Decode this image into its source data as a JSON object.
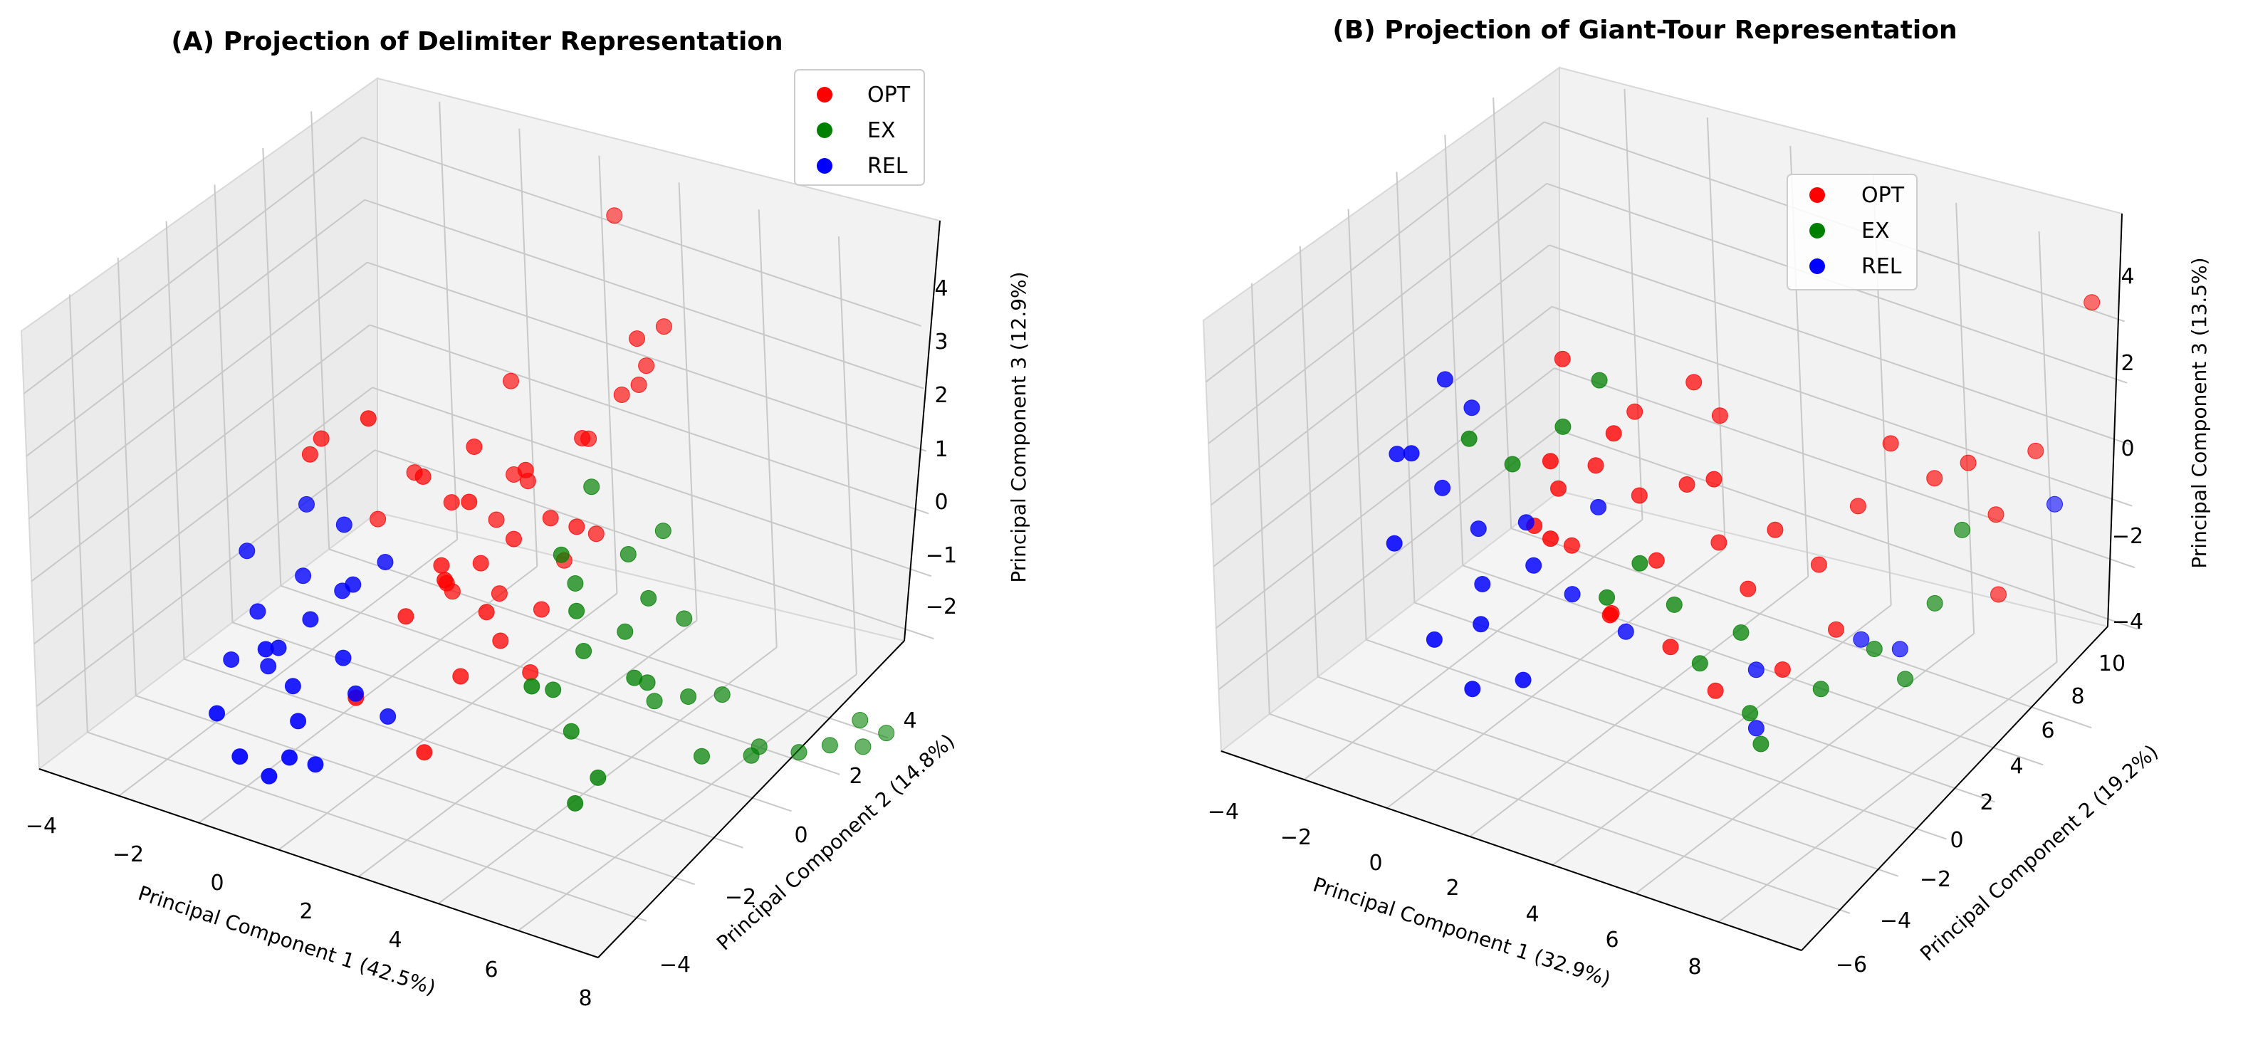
{
  "figure": {
    "panels": [
      {
        "title": "(A) Projection of Delimiter Representation",
        "xlabel": "Principal Component 1 (42.5%)",
        "ylabel": "Principal Component 2 (14.8%)",
        "zlabel": "Principal Component 3 (12.9%)",
        "xticks": [
          "−4",
          "−2",
          "0",
          "2",
          "4",
          "6",
          "8"
        ],
        "yticks": [
          "−4",
          "−2",
          "0",
          "2",
          "4"
        ],
        "zticks": [
          "−2",
          "−1",
          "0",
          "1",
          "2",
          "3",
          "4"
        ],
        "legend": [
          "OPT",
          "EX",
          "REL"
        ]
      },
      {
        "title": "(B) Projection of Giant-Tour Representation",
        "xlabel": "Principal Component 1 (32.9%)",
        "ylabel": "Principal Component 2 (19.2%)",
        "zlabel": "Principal Component 3 (13.5%)",
        "xticks": [
          "−4",
          "−2",
          "0",
          "2",
          "4",
          "6",
          "8"
        ],
        "yticks": [
          "−6",
          "−4",
          "−2",
          "0",
          "2",
          "4",
          "6",
          "8",
          "10"
        ],
        "zticks": [
          "−4",
          "−2",
          "0",
          "2",
          "4"
        ],
        "legend": [
          "OPT",
          "EX",
          "REL"
        ]
      }
    ]
  },
  "chart_data": [
    {
      "type": "scatter",
      "subtype": "3d",
      "title": "(A) Projection of Delimiter Representation",
      "xlabel": "Principal Component 1 (42.5%)",
      "ylabel": "Principal Component 2 (14.8%)",
      "zlabel": "Principal Component 3 (12.9%)",
      "xlim": [
        -4,
        8
      ],
      "ylim": [
        -4.5,
        5
      ],
      "zlim": [
        -2.5,
        4.8
      ],
      "grid": true,
      "legend_position": "upper-right",
      "series": [
        {
          "name": "OPT",
          "color": "#ff0000",
          "points": [
            [
              1.8,
              0.5,
              0.2
            ],
            [
              2.3,
              0.8,
              0.6
            ],
            [
              1.2,
              0.3,
              -0.2
            ],
            [
              2.8,
              1.2,
              0.9
            ],
            [
              1.5,
              -0.2,
              0.4
            ],
            [
              3.0,
              0.6,
              -0.3
            ],
            [
              2.1,
              1.5,
              1.2
            ],
            [
              0.9,
              0.9,
              0.8
            ],
            [
              2.6,
              -0.4,
              0.0
            ],
            [
              1.7,
              1.1,
              -0.6
            ],
            [
              3.3,
              1.8,
              0.5
            ],
            [
              2.0,
              0.0,
              1.5
            ],
            [
              1.3,
              1.6,
              0.3
            ],
            [
              2.4,
              0.2,
              -0.8
            ],
            [
              3.6,
              0.9,
              1.1
            ],
            [
              1.0,
              -0.6,
              -0.4
            ],
            [
              2.9,
              2.2,
              1.8
            ],
            [
              1.6,
              0.7,
              2.0
            ],
            [
              2.2,
              -1.0,
              0.7
            ],
            [
              3.1,
              0.1,
              -1.1
            ],
            [
              0.7,
              0.4,
              1.4
            ],
            [
              2.5,
              1.9,
              -0.2
            ],
            [
              1.9,
              -0.3,
              -1.3
            ],
            [
              3.4,
              1.4,
              2.3
            ],
            [
              1.4,
              2.0,
              0.9
            ],
            [
              2.7,
              0.7,
              1.9
            ],
            [
              0.6,
              1.2,
              -0.9
            ],
            [
              3.8,
              2.5,
              2.8
            ],
            [
              4.0,
              3.0,
              3.6
            ],
            [
              3.9,
              2.6,
              3.1
            ],
            [
              3.5,
              2.4,
              2.6
            ],
            [
              0.2,
              -0.4,
              2.6
            ],
            [
              1.1,
              2.4,
              2.2
            ],
            [
              -0.6,
              1.8,
              0.5
            ],
            [
              -1.2,
              1.5,
              -0.3
            ],
            [
              4.2,
              2.0,
              3.9
            ],
            [
              -1.8,
              0.8,
              1.2
            ],
            [
              -1.9,
              0.6,
              1.0
            ],
            [
              2.3,
              3.9,
              4.6
            ],
            [
              0.4,
              -1.3,
              -1.6
            ],
            [
              2.0,
              -1.5,
              -2.0
            ]
          ]
        },
        {
          "name": "EX",
          "color": "#008000",
          "points": [
            [
              4.2,
              0.2,
              -0.5
            ],
            [
              4.8,
              0.6,
              -0.2
            ],
            [
              3.9,
              -0.3,
              -1.0
            ],
            [
              5.1,
              0.9,
              0.3
            ],
            [
              4.5,
              -0.6,
              -1.4
            ],
            [
              5.4,
              0.4,
              -0.8
            ],
            [
              3.6,
              0.8,
              0.2
            ],
            [
              4.9,
              1.2,
              -1.6
            ],
            [
              5.6,
              -0.2,
              -0.4
            ],
            [
              4.3,
              1.4,
              0.6
            ],
            [
              5.2,
              -0.8,
              -1.9
            ],
            [
              4.0,
              -1.0,
              -0.6
            ],
            [
              5.8,
              1.0,
              -1.2
            ],
            [
              3.8,
              0.2,
              1.0
            ],
            [
              4.6,
              2.0,
              0.8
            ],
            [
              5.0,
              -1.2,
              -2.2
            ],
            [
              6.2,
              0.8,
              -2.0
            ],
            [
              6.8,
              1.4,
              -2.1
            ],
            [
              6.5,
              2.0,
              -2.3
            ],
            [
              7.4,
              2.8,
              -2.4
            ],
            [
              7.8,
              3.2,
              -2.5
            ],
            [
              8.0,
              3.6,
              -2.4
            ],
            [
              7.6,
              3.4,
              -2.2
            ],
            [
              7.2,
              2.2,
              -2.3
            ],
            [
              5.9,
              1.8,
              -1.5
            ],
            [
              3.4,
              1.6,
              1.4
            ],
            [
              4.4,
              -0.2,
              0.4
            ],
            [
              5.3,
              1.6,
              -0.3
            ]
          ]
        },
        {
          "name": "REL",
          "color": "#0000ff",
          "points": [
            [
              -0.6,
              -1.2,
              -0.6
            ],
            [
              -0.2,
              -0.8,
              -0.2
            ],
            [
              -1.0,
              -1.6,
              -1.0
            ],
            [
              0.2,
              -1.0,
              0.1
            ],
            [
              -0.4,
              -2.0,
              -1.3
            ],
            [
              0.4,
              -1.6,
              -0.8
            ],
            [
              -1.2,
              -0.6,
              -0.3
            ],
            [
              0.0,
              -2.4,
              -1.6
            ],
            [
              -0.8,
              -2.2,
              -0.7
            ],
            [
              0.6,
              -0.6,
              0.4
            ],
            [
              -1.4,
              -1.4,
              -1.5
            ],
            [
              0.8,
              -1.8,
              -1.2
            ],
            [
              -0.5,
              -0.3,
              0.6
            ],
            [
              -1.6,
              -2.6,
              -1.8
            ],
            [
              0.1,
              -2.8,
              -2.0
            ],
            [
              -1.9,
              -1.0,
              -0.9
            ],
            [
              -2.2,
              -1.4,
              -1.6
            ],
            [
              0.5,
              -2.6,
              -2.1
            ],
            [
              -0.9,
              -2.9,
              -2.2
            ],
            [
              -1.7,
              0.2,
              0.4
            ],
            [
              -2.4,
              -0.6,
              -0.2
            ],
            [
              1.0,
              -1.2,
              -1.8
            ],
            [
              -0.2,
              -3.0,
              -2.3
            ]
          ]
        }
      ]
    },
    {
      "type": "scatter",
      "subtype": "3d",
      "title": "(B) Projection of Giant-Tour Representation",
      "xlabel": "Principal Component 1 (32.9%)",
      "ylabel": "Principal Component 2 (19.2%)",
      "zlabel": "Principal Component 3 (13.5%)",
      "xlim": [
        -4,
        9
      ],
      "ylim": [
        -6.5,
        11
      ],
      "zlim": [
        -4.2,
        5
      ],
      "grid": true,
      "legend_position": "upper-center",
      "series": [
        {
          "name": "OPT",
          "color": "#ff0000",
          "points": [
            [
              0.6,
              0.8,
              0.6
            ],
            [
              1.2,
              1.4,
              1.1
            ],
            [
              0.2,
              0.4,
              -0.2
            ],
            [
              1.8,
              2.2,
              0.4
            ],
            [
              0.9,
              -0.2,
              1.6
            ],
            [
              2.4,
              1.6,
              -0.6
            ],
            [
              1.5,
              2.8,
              1.9
            ],
            [
              0.4,
              1.8,
              -1.0
            ],
            [
              2.0,
              0.6,
              2.3
            ],
            [
              2.8,
              2.4,
              0.9
            ],
            [
              1.1,
              -0.8,
              0.2
            ],
            [
              3.2,
              3.0,
              -0.4
            ],
            [
              2.2,
              -0.4,
              -1.2
            ],
            [
              1.6,
              1.0,
              -1.8
            ],
            [
              3.6,
              2.0,
              1.4
            ],
            [
              0.0,
              2.6,
              2.6
            ],
            [
              2.6,
              3.4,
              2.7
            ],
            [
              4.0,
              2.6,
              -1.0
            ],
            [
              3.0,
              0.8,
              -2.0
            ],
            [
              4.4,
              3.2,
              0.2
            ],
            [
              4.8,
              2.4,
              -2.4
            ],
            [
              2.8,
              4.2,
              1.8
            ],
            [
              5.0,
              4.0,
              -0.6
            ],
            [
              5.6,
              3.4,
              -1.6
            ],
            [
              6.2,
              5.2,
              2.0
            ],
            [
              6.8,
              6.0,
              1.2
            ],
            [
              7.4,
              6.4,
              1.6
            ],
            [
              7.8,
              6.8,
              0.5
            ],
            [
              8.4,
              7.6,
              1.8
            ],
            [
              7.6,
              7.2,
              -1.4
            ],
            [
              9.0,
              9.4,
              4.6
            ],
            [
              3.8,
              1.2,
              -2.8
            ],
            [
              5.4,
              5.2,
              0.4
            ]
          ]
        },
        {
          "name": "EX",
          "color": "#008000",
          "points": [
            [
              -1.2,
              0.4,
              1.2
            ],
            [
              -0.6,
              1.2,
              0.6
            ],
            [
              0.4,
              1.6,
              1.6
            ],
            [
              1.6,
              0.8,
              -1.4
            ],
            [
              2.4,
              2.4,
              -1.8
            ],
            [
              3.2,
              1.8,
              -2.6
            ],
            [
              4.2,
              2.0,
              -3.4
            ],
            [
              3.8,
              2.6,
              -2.0
            ],
            [
              6.0,
              4.4,
              -2.2
            ],
            [
              6.6,
              6.2,
              -1.6
            ],
            [
              7.2,
              6.4,
              0.1
            ],
            [
              5.2,
              3.4,
              -3.0
            ],
            [
              4.6,
              1.6,
              -3.8
            ],
            [
              1.0,
              2.2,
              2.6
            ],
            [
              2.2,
              1.2,
              -0.6
            ],
            [
              6.4,
              5.0,
              -2.9
            ]
          ]
        },
        {
          "name": "REL",
          "color": "#0000ff",
          "points": [
            [
              -1.4,
              -0.6,
              0.4
            ],
            [
              -0.8,
              -0.2,
              -0.4
            ],
            [
              -1.8,
              -1.2,
              1.2
            ],
            [
              -0.4,
              -1.0,
              -1.2
            ],
            [
              0.2,
              0.0,
              0.0
            ],
            [
              -1.2,
              0.6,
              1.8
            ],
            [
              -0.2,
              -1.6,
              -1.8
            ],
            [
              0.6,
              -0.6,
              -0.6
            ],
            [
              -2.0,
              -1.8,
              -0.6
            ],
            [
              -1.0,
              -2.2,
              -2.2
            ],
            [
              1.0,
              0.4,
              -1.4
            ],
            [
              0.0,
              -2.6,
              -2.8
            ],
            [
              -1.6,
              0.2,
              2.4
            ],
            [
              1.4,
              1.0,
              0.4
            ],
            [
              -2.4,
              -0.6,
              0.8
            ],
            [
              0.8,
              -1.8,
              -2.6
            ],
            [
              2.0,
              0.8,
              -2.0
            ],
            [
              4.2,
              2.4,
              -2.6
            ],
            [
              5.8,
              4.2,
              -2.0
            ],
            [
              6.4,
              4.8,
              -2.2
            ],
            [
              4.6,
              1.4,
              -3.4
            ],
            [
              8.6,
              8.0,
              0.6
            ]
          ]
        }
      ]
    }
  ]
}
